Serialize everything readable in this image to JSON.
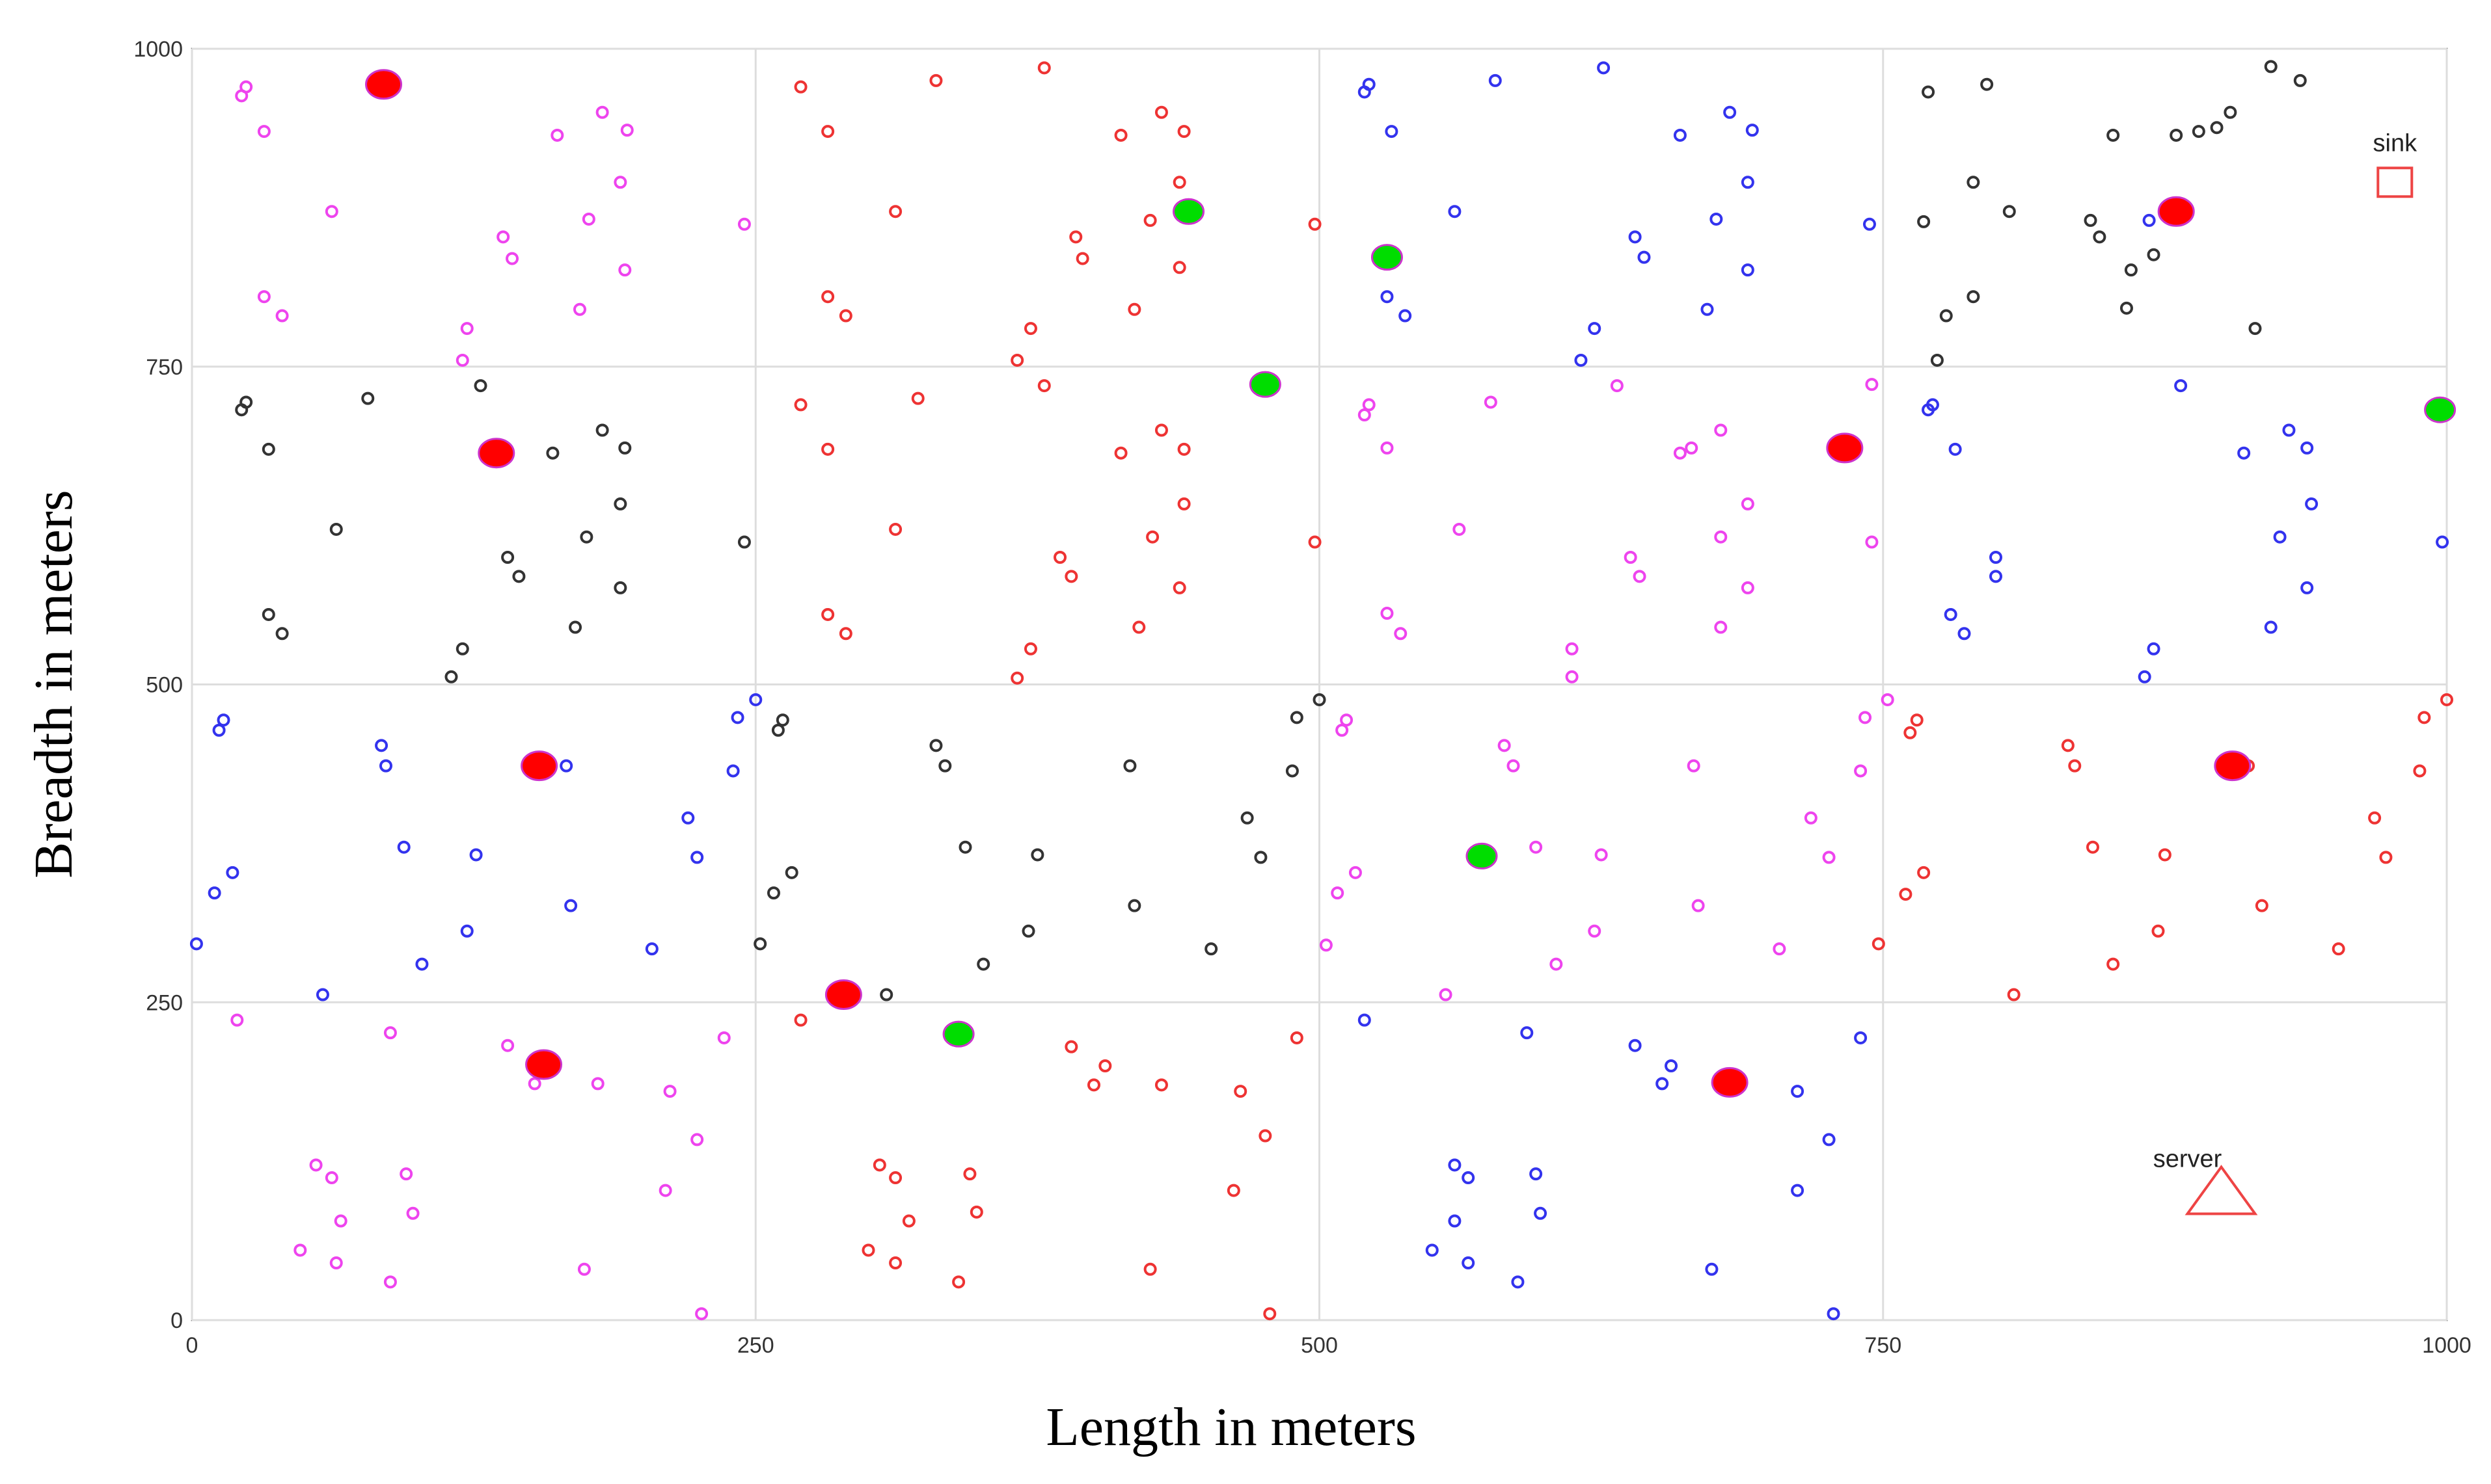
{
  "chart_data": {
    "type": "scatter",
    "xlabel": "Length in meters",
    "ylabel": "Breadth in meters",
    "xlim": [
      0,
      1000
    ],
    "ylim": [
      0,
      1000
    ],
    "xticks": [
      "0",
      "250",
      "500",
      "750",
      "1000"
    ],
    "yticks": [
      "0",
      "250",
      "500",
      "750",
      "1000"
    ],
    "grid": true,
    "series": [
      {
        "color": "#ee3333",
        "marker": "small-circle",
        "points": [
          [
            270,
            970
          ],
          [
            330,
            975
          ],
          [
            378,
            985
          ],
          [
            282,
            935
          ],
          [
            312,
            872
          ],
          [
            430,
            950
          ],
          [
            438,
            895
          ],
          [
            440,
            935
          ],
          [
            412,
            932
          ],
          [
            392,
            852
          ],
          [
            425,
            865
          ],
          [
            438,
            828
          ],
          [
            395,
            835
          ],
          [
            282,
            805
          ],
          [
            290,
            790
          ],
          [
            372,
            780
          ],
          [
            366,
            755
          ],
          [
            378,
            735
          ],
          [
            418,
            795
          ],
          [
            270,
            720
          ],
          [
            282,
            685
          ],
          [
            322,
            725
          ],
          [
            312,
            622
          ],
          [
            430,
            700
          ],
          [
            412,
            682
          ],
          [
            440,
            685
          ],
          [
            440,
            642
          ],
          [
            385,
            600
          ],
          [
            426,
            616
          ],
          [
            390,
            585
          ],
          [
            282,
            555
          ],
          [
            290,
            540
          ],
          [
            372,
            528
          ],
          [
            366,
            505
          ],
          [
            438,
            576
          ],
          [
            420,
            545
          ],
          [
            498,
            862
          ],
          [
            498,
            612
          ],
          [
            270,
            236
          ],
          [
            390,
            215
          ],
          [
            405,
            200
          ],
          [
            400,
            185
          ],
          [
            430,
            185
          ],
          [
            465,
            180
          ],
          [
            490,
            222
          ],
          [
            305,
            122
          ],
          [
            312,
            112
          ],
          [
            345,
            115
          ],
          [
            318,
            78
          ],
          [
            348,
            85
          ],
          [
            300,
            55
          ],
          [
            312,
            45
          ],
          [
            340,
            30
          ],
          [
            425,
            40
          ],
          [
            478,
            5
          ],
          [
            462,
            102
          ],
          [
            476,
            145
          ],
          [
            748,
            296
          ],
          [
            760,
            335
          ],
          [
            762,
            462
          ],
          [
            765,
            472
          ],
          [
            768,
            352
          ],
          [
            808,
            256
          ],
          [
            832,
            452
          ],
          [
            835,
            436
          ],
          [
            843,
            372
          ],
          [
            852,
            280
          ],
          [
            872,
            306
          ],
          [
            875,
            366
          ],
          [
            912,
            436
          ],
          [
            918,
            326
          ],
          [
            952,
            292
          ],
          [
            968,
            395
          ],
          [
            973,
            364
          ],
          [
            988,
            432
          ],
          [
            990,
            474
          ],
          [
            1000,
            488
          ]
        ]
      },
      {
        "color": "#ee44ee",
        "marker": "small-circle",
        "points": [
          [
            22,
            963
          ],
          [
            24,
            970
          ],
          [
            32,
            935
          ],
          [
            32,
            805
          ],
          [
            40,
            790
          ],
          [
            62,
            872
          ],
          [
            120,
            755
          ],
          [
            122,
            780
          ],
          [
            138,
            852
          ],
          [
            142,
            835
          ],
          [
            162,
            932
          ],
          [
            172,
            795
          ],
          [
            176,
            866
          ],
          [
            182,
            950
          ],
          [
            190,
            895
          ],
          [
            192,
            826
          ],
          [
            193,
            936
          ],
          [
            245,
            862
          ],
          [
            612,
            506
          ],
          [
            612,
            528
          ],
          [
            632,
            735
          ],
          [
            576,
            722
          ],
          [
            562,
            622
          ],
          [
            520,
            712
          ],
          [
            522,
            720
          ],
          [
            530,
            686
          ],
          [
            530,
            556
          ],
          [
            536,
            540
          ],
          [
            638,
            600
          ],
          [
            642,
            585
          ],
          [
            660,
            682
          ],
          [
            665,
            686
          ],
          [
            678,
            616
          ],
          [
            678,
            700
          ],
          [
            690,
            642
          ],
          [
            690,
            576
          ],
          [
            678,
            545
          ],
          [
            745,
            612
          ],
          [
            745,
            736
          ],
          [
            20,
            236
          ],
          [
            88,
            226
          ],
          [
            140,
            216
          ],
          [
            152,
            186
          ],
          [
            180,
            186
          ],
          [
            212,
            180
          ],
          [
            224,
            142
          ],
          [
            210,
            102
          ],
          [
            236,
            222
          ],
          [
            95,
            115
          ],
          [
            98,
            84
          ],
          [
            55,
            122
          ],
          [
            62,
            112
          ],
          [
            66,
            78
          ],
          [
            48,
            55
          ],
          [
            64,
            45
          ],
          [
            88,
            30
          ],
          [
            174,
            40
          ],
          [
            226,
            5
          ],
          [
            503,
            295
          ],
          [
            508,
            336
          ],
          [
            516,
            352
          ],
          [
            510,
            464
          ],
          [
            512,
            472
          ],
          [
            556,
            256
          ],
          [
            582,
            452
          ],
          [
            586,
            436
          ],
          [
            596,
            372
          ],
          [
            605,
            280
          ],
          [
            622,
            306
          ],
          [
            625,
            366
          ],
          [
            666,
            436
          ],
          [
            668,
            326
          ],
          [
            704,
            292
          ],
          [
            718,
            395
          ],
          [
            726,
            364
          ],
          [
            740,
            432
          ],
          [
            742,
            474
          ],
          [
            752,
            488
          ]
        ]
      },
      {
        "color": "#3333ee",
        "marker": "small-circle",
        "points": [
          [
            520,
            966
          ],
          [
            522,
            972
          ],
          [
            578,
            975
          ],
          [
            626,
            985
          ],
          [
            532,
            935
          ],
          [
            560,
            872
          ],
          [
            640,
            852
          ],
          [
            644,
            836
          ],
          [
            660,
            932
          ],
          [
            676,
            866
          ],
          [
            682,
            950
          ],
          [
            690,
            895
          ],
          [
            690,
            826
          ],
          [
            692,
            936
          ],
          [
            672,
            795
          ],
          [
            530,
            805
          ],
          [
            538,
            790
          ],
          [
            622,
            780
          ],
          [
            616,
            755
          ],
          [
            770,
            716
          ],
          [
            772,
            720
          ],
          [
            782,
            685
          ],
          [
            800,
            600
          ],
          [
            800,
            585
          ],
          [
            780,
            555
          ],
          [
            786,
            540
          ],
          [
            744,
            862
          ],
          [
            868,
            865
          ],
          [
            882,
            735
          ],
          [
            910,
            682
          ],
          [
            930,
            700
          ],
          [
            938,
            686
          ],
          [
            940,
            642
          ],
          [
            938,
            576
          ],
          [
            926,
            616
          ],
          [
            922,
            545
          ],
          [
            998,
            612
          ],
          [
            866,
            506
          ],
          [
            870,
            528
          ],
          [
            12,
            464
          ],
          [
            14,
            472
          ],
          [
            18,
            352
          ],
          [
            10,
            336
          ],
          [
            2,
            296
          ],
          [
            58,
            256
          ],
          [
            84,
            452
          ],
          [
            86,
            436
          ],
          [
            94,
            372
          ],
          [
            102,
            280
          ],
          [
            122,
            306
          ],
          [
            126,
            366
          ],
          [
            166,
            436
          ],
          [
            168,
            326
          ],
          [
            204,
            292
          ],
          [
            220,
            395
          ],
          [
            224,
            364
          ],
          [
            240,
            432
          ],
          [
            242,
            474
          ],
          [
            250,
            488
          ],
          [
            520,
            236
          ],
          [
            592,
            226
          ],
          [
            640,
            216
          ],
          [
            652,
            186
          ],
          [
            656,
            200
          ],
          [
            680,
            186
          ],
          [
            712,
            180
          ],
          [
            726,
            142
          ],
          [
            712,
            102
          ],
          [
            740,
            222
          ],
          [
            560,
            122
          ],
          [
            566,
            112
          ],
          [
            596,
            115
          ],
          [
            598,
            84
          ],
          [
            560,
            78
          ],
          [
            550,
            55
          ],
          [
            566,
            45
          ],
          [
            588,
            30
          ],
          [
            674,
            40
          ],
          [
            728,
            5
          ]
        ]
      },
      {
        "color": "#333333",
        "marker": "small-circle",
        "points": [
          [
            22,
            716
          ],
          [
            24,
            722
          ],
          [
            34,
            685
          ],
          [
            64,
            622
          ],
          [
            78,
            725
          ],
          [
            128,
            735
          ],
          [
            140,
            600
          ],
          [
            145,
            585
          ],
          [
            160,
            682
          ],
          [
            170,
            545
          ],
          [
            175,
            616
          ],
          [
            182,
            700
          ],
          [
            190,
            642
          ],
          [
            192,
            686
          ],
          [
            190,
            576
          ],
          [
            34,
            555
          ],
          [
            40,
            540
          ],
          [
            120,
            528
          ],
          [
            115,
            506
          ],
          [
            245,
            612
          ],
          [
            770,
            966
          ],
          [
            796,
            972
          ],
          [
            768,
            864
          ],
          [
            778,
            790
          ],
          [
            790,
            805
          ],
          [
            790,
            895
          ],
          [
            806,
            872
          ],
          [
            774,
            755
          ],
          [
            842,
            865
          ],
          [
            846,
            852
          ],
          [
            852,
            932
          ],
          [
            858,
            796
          ],
          [
            860,
            826
          ],
          [
            870,
            838
          ],
          [
            880,
            932
          ],
          [
            890,
            935
          ],
          [
            898,
            938
          ],
          [
            904,
            950
          ],
          [
            922,
            986
          ],
          [
            935,
            975
          ],
          [
            915,
            780
          ],
          [
            260,
            464
          ],
          [
            262,
            472
          ],
          [
            266,
            352
          ],
          [
            258,
            336
          ],
          [
            252,
            296
          ],
          [
            330,
            452
          ],
          [
            334,
            436
          ],
          [
            343,
            372
          ],
          [
            351,
            280
          ],
          [
            371,
            306
          ],
          [
            375,
            366
          ],
          [
            416,
            436
          ],
          [
            418,
            326
          ],
          [
            452,
            292
          ],
          [
            468,
            395
          ],
          [
            474,
            364
          ],
          [
            488,
            432
          ],
          [
            490,
            474
          ],
          [
            500,
            488
          ],
          [
            308,
            256
          ]
        ]
      },
      {
        "color": "#ff0000",
        "marker": "large-filled-circle",
        "points": [
          [
            85,
            972
          ],
          [
            135,
            682
          ],
          [
            154,
            436
          ],
          [
            156,
            201
          ],
          [
            289,
            256
          ],
          [
            682,
            187
          ],
          [
            733,
            686
          ],
          [
            880,
            872
          ],
          [
            905,
            436
          ]
        ]
      },
      {
        "color": "#00dd00",
        "marker": "medium-filled-circle",
        "points": [
          [
            442,
            872
          ],
          [
            530,
            836
          ],
          [
            476,
            736
          ],
          [
            572,
            365
          ],
          [
            340,
            225
          ],
          [
            997,
            716
          ]
        ]
      }
    ],
    "markers": [
      {
        "label": "sink",
        "shape": "square",
        "x": 977,
        "y": 895,
        "color": "#ee4444"
      },
      {
        "label": "server",
        "shape": "triangle",
        "x": 900,
        "y": 100,
        "color": "#ee4444"
      }
    ]
  }
}
